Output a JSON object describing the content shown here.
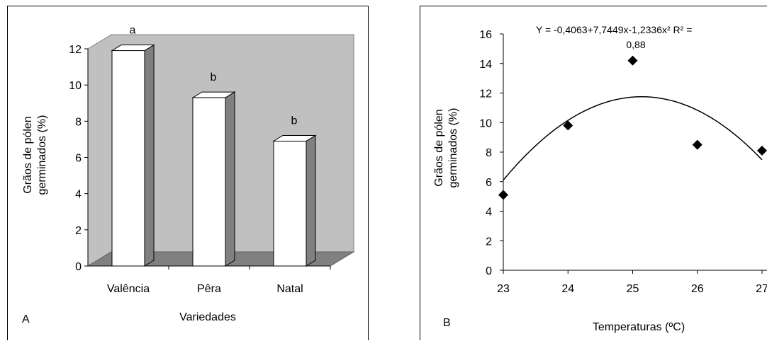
{
  "chart_data": [
    {
      "type": "bar",
      "panel_label": "A",
      "categories": [
        "Valência",
        "Pêra",
        "Natal"
      ],
      "values": [
        11.9,
        9.3,
        6.9
      ],
      "significance_letters": [
        "a",
        "b",
        "b"
      ],
      "xlabel": "Variedades",
      "ylabel_line1": "Grãos de pólen",
      "ylabel_line2": "germinados (%)",
      "ylim": [
        0,
        12
      ],
      "yticks": [
        "0",
        "2",
        "4",
        "6",
        "8",
        "10",
        "12"
      ],
      "grid": false,
      "three_d": true,
      "colors": {
        "bar_face": "#ffffff",
        "bar_side": "#808080",
        "wall": "#c0c0c0",
        "floor": "#808080"
      }
    },
    {
      "type": "scatter",
      "panel_label": "B",
      "x": [
        23,
        24,
        25,
        26,
        27
      ],
      "y": [
        5.1,
        9.8,
        14.2,
        8.5,
        8.1
      ],
      "fit": {
        "a": -0.4063,
        "b": 7.7449,
        "c": -1.2336,
        "x_index_start": 23
      },
      "equation_line1": "Y = -0,4063+7,7449x-1,2336x² R² =",
      "equation_line2": "0,88",
      "xlabel": "Temperaturas (ºC)",
      "ylabel_line1": "Grãos de pólen",
      "ylabel_line2": "germinados (%)",
      "xlim": [
        23,
        27
      ],
      "ylim": [
        0,
        16
      ],
      "xticks": [
        "23",
        "24",
        "25",
        "26",
        "27"
      ],
      "yticks": [
        "0",
        "2",
        "4",
        "6",
        "8",
        "10",
        "12",
        "14",
        "16"
      ],
      "grid": false,
      "colors": {
        "marker": "#000000",
        "curve": "#000000"
      }
    }
  ]
}
